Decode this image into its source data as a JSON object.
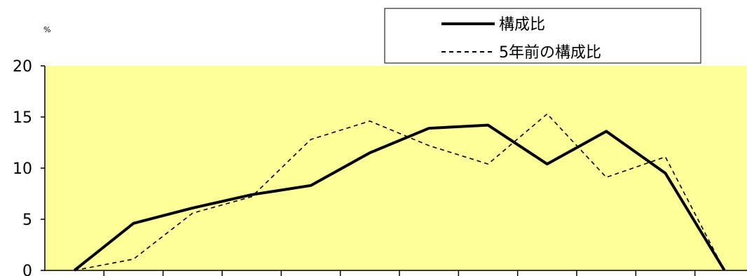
{
  "chart_data": {
    "type": "line",
    "unit_label": "%",
    "ylim": [
      0,
      20
    ],
    "yticks": [
      0,
      5,
      10,
      15,
      20
    ],
    "num_categories": 12,
    "grid": false,
    "legend_position": "top-right",
    "plot_background": "#FFFF99",
    "series": [
      {
        "name": "構成比",
        "style": "solid",
        "color": "#000000",
        "values": [
          0,
          4.6,
          6.1,
          7.4,
          8.3,
          11.5,
          13.9,
          14.2,
          10.4,
          13.6,
          9.5,
          0
        ]
      },
      {
        "name": "5年前の構成比",
        "style": "dashed",
        "color": "#000000",
        "values": [
          0,
          1.1,
          5.6,
          7.2,
          12.8,
          14.6,
          12.2,
          10.4,
          15.3,
          9.1,
          11.1,
          0
        ]
      }
    ]
  }
}
